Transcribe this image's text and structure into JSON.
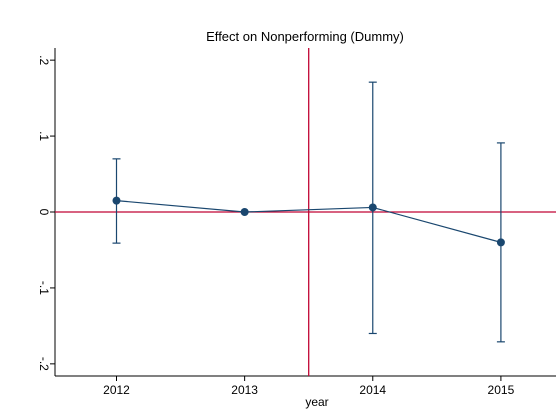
{
  "chart_data": {
    "type": "coefplot",
    "title": "Effect on Nonperforming (Dummy)",
    "x_label": "year",
    "x": [
      2012,
      2013,
      2014,
      2015
    ],
    "series": [
      {
        "color": "#1a476f",
        "values": [
          0.015,
          0,
          0.006,
          -0.04
        ],
        "ci_low": [
          -0.041,
          0,
          -0.16,
          -0.171
        ],
        "ci_high": [
          0.07,
          0,
          0.171,
          0.091
        ]
      }
    ],
    "xlim": [
      2011.52,
      2015.43
    ],
    "xticks": [
      2012,
      2013,
      2014,
      2015
    ],
    "ylim": [
      -0.216,
      0.216
    ],
    "yticks": [
      {
        "value": -0.2,
        "label": "-.2"
      },
      {
        "value": -0.1,
        "label": "-.1"
      },
      0,
      {
        "value": 0.1,
        "label": ".1"
      },
      {
        "value": 0.2,
        "label": ".2"
      }
    ],
    "xline": 2013.5,
    "yline": 0,
    "refline_color": "#c10534"
  }
}
